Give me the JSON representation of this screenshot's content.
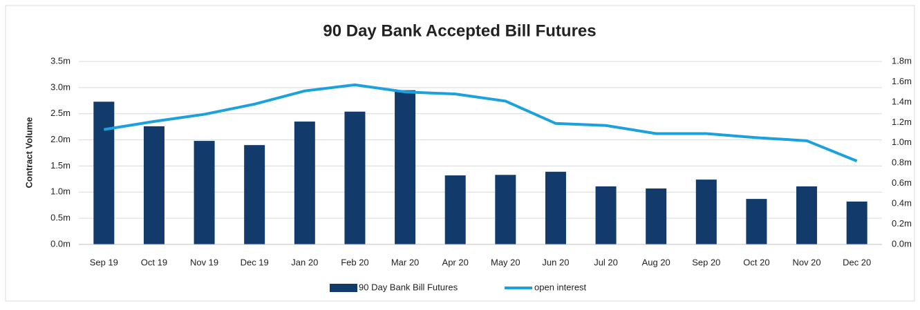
{
  "chart_data": {
    "type": "bar_line",
    "title": "90 Day Bank Accepted Bill Futures",
    "ylabel": "Contract Volume",
    "categories": [
      "Sep 19",
      "Oct 19",
      "Nov 19",
      "Dec 19",
      "Jan 20",
      "Feb 20",
      "Mar 20",
      "Apr 20",
      "May 20",
      "Jun 20",
      "Jul 20",
      "Aug 20",
      "Sep 20",
      "Oct 20",
      "Nov 20",
      "Dec 20"
    ],
    "series": [
      {
        "name": "90 Day Bank Bill Futures",
        "type": "bar",
        "color": "#123a6b",
        "values": [
          2730000,
          2260000,
          1980000,
          1900000,
          2350000,
          2540000,
          2950000,
          1320000,
          1330000,
          1390000,
          1110000,
          1070000,
          1240000,
          870000,
          1110000,
          820000
        ]
      },
      {
        "name": "open interest",
        "type": "line",
        "axis": "y2",
        "color": "#1ba1dd",
        "values": [
          1130000,
          1210000,
          1280000,
          1380000,
          1510000,
          1570000,
          1500000,
          1480000,
          1410000,
          1190000,
          1170000,
          1090000,
          1090000,
          1050000,
          1020000,
          820000
        ]
      }
    ],
    "ylim": [
      0,
      3500000
    ],
    "yticks": [
      {
        "value": 0,
        "label": "0.0m"
      },
      {
        "value": 500000,
        "label": "0.5m"
      },
      {
        "value": 1000000,
        "label": "1.0m"
      },
      {
        "value": 1500000,
        "label": "1.5m"
      },
      {
        "value": 2000000,
        "label": "2.0m"
      },
      {
        "value": 2500000,
        "label": "2.5m"
      },
      {
        "value": 3000000,
        "label": "3.0m"
      },
      {
        "value": 3500000,
        "label": "3.5m"
      }
    ],
    "y2lim": [
      0,
      1800000
    ],
    "y2ticks": [
      {
        "value": 0,
        "label": "0.0m"
      },
      {
        "value": 200000,
        "label": "0.2m"
      },
      {
        "value": 400000,
        "label": "0.4m"
      },
      {
        "value": 600000,
        "label": "0.6m"
      },
      {
        "value": 800000,
        "label": "0.8m"
      },
      {
        "value": 1000000,
        "label": "1.0m"
      },
      {
        "value": 1200000,
        "label": "1.2m"
      },
      {
        "value": 1400000,
        "label": "1.4m"
      },
      {
        "value": 1600000,
        "label": "1.6m"
      },
      {
        "value": 1800000,
        "label": "1.8m"
      }
    ],
    "grid": true,
    "legend": "bottom"
  }
}
